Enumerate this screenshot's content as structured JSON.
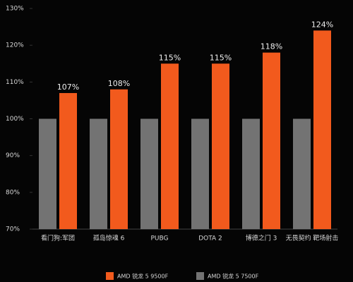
{
  "chart_data": {
    "type": "bar",
    "categories": [
      "看门狗:军团",
      "孤岛惊魂 6",
      "PUBG",
      "DOTA 2",
      "博德之门 3",
      "无畏契约 靶场射击"
    ],
    "series": [
      {
        "name": "AMD 锐龙 5 7500F",
        "color": "#737373",
        "values": [
          100,
          100,
          100,
          100,
          100,
          100
        ]
      },
      {
        "name": "AMD 锐龙 5 9500F",
        "color": "#f25a1d",
        "values": [
          107,
          108,
          115,
          115,
          118,
          124
        ],
        "value_labels": [
          "107%",
          "108%",
          "115%",
          "115%",
          "118%",
          "124%"
        ]
      }
    ],
    "ylim": [
      70,
      130
    ],
    "yticks": [
      {
        "value": 70,
        "label": "70%"
      },
      {
        "value": 80,
        "label": "80%"
      },
      {
        "value": 90,
        "label": "90%"
      },
      {
        "value": 100,
        "label": "100%"
      },
      {
        "value": 110,
        "label": "110%"
      },
      {
        "value": 120,
        "label": "120%"
      },
      {
        "value": 130,
        "label": "130%"
      }
    ]
  }
}
